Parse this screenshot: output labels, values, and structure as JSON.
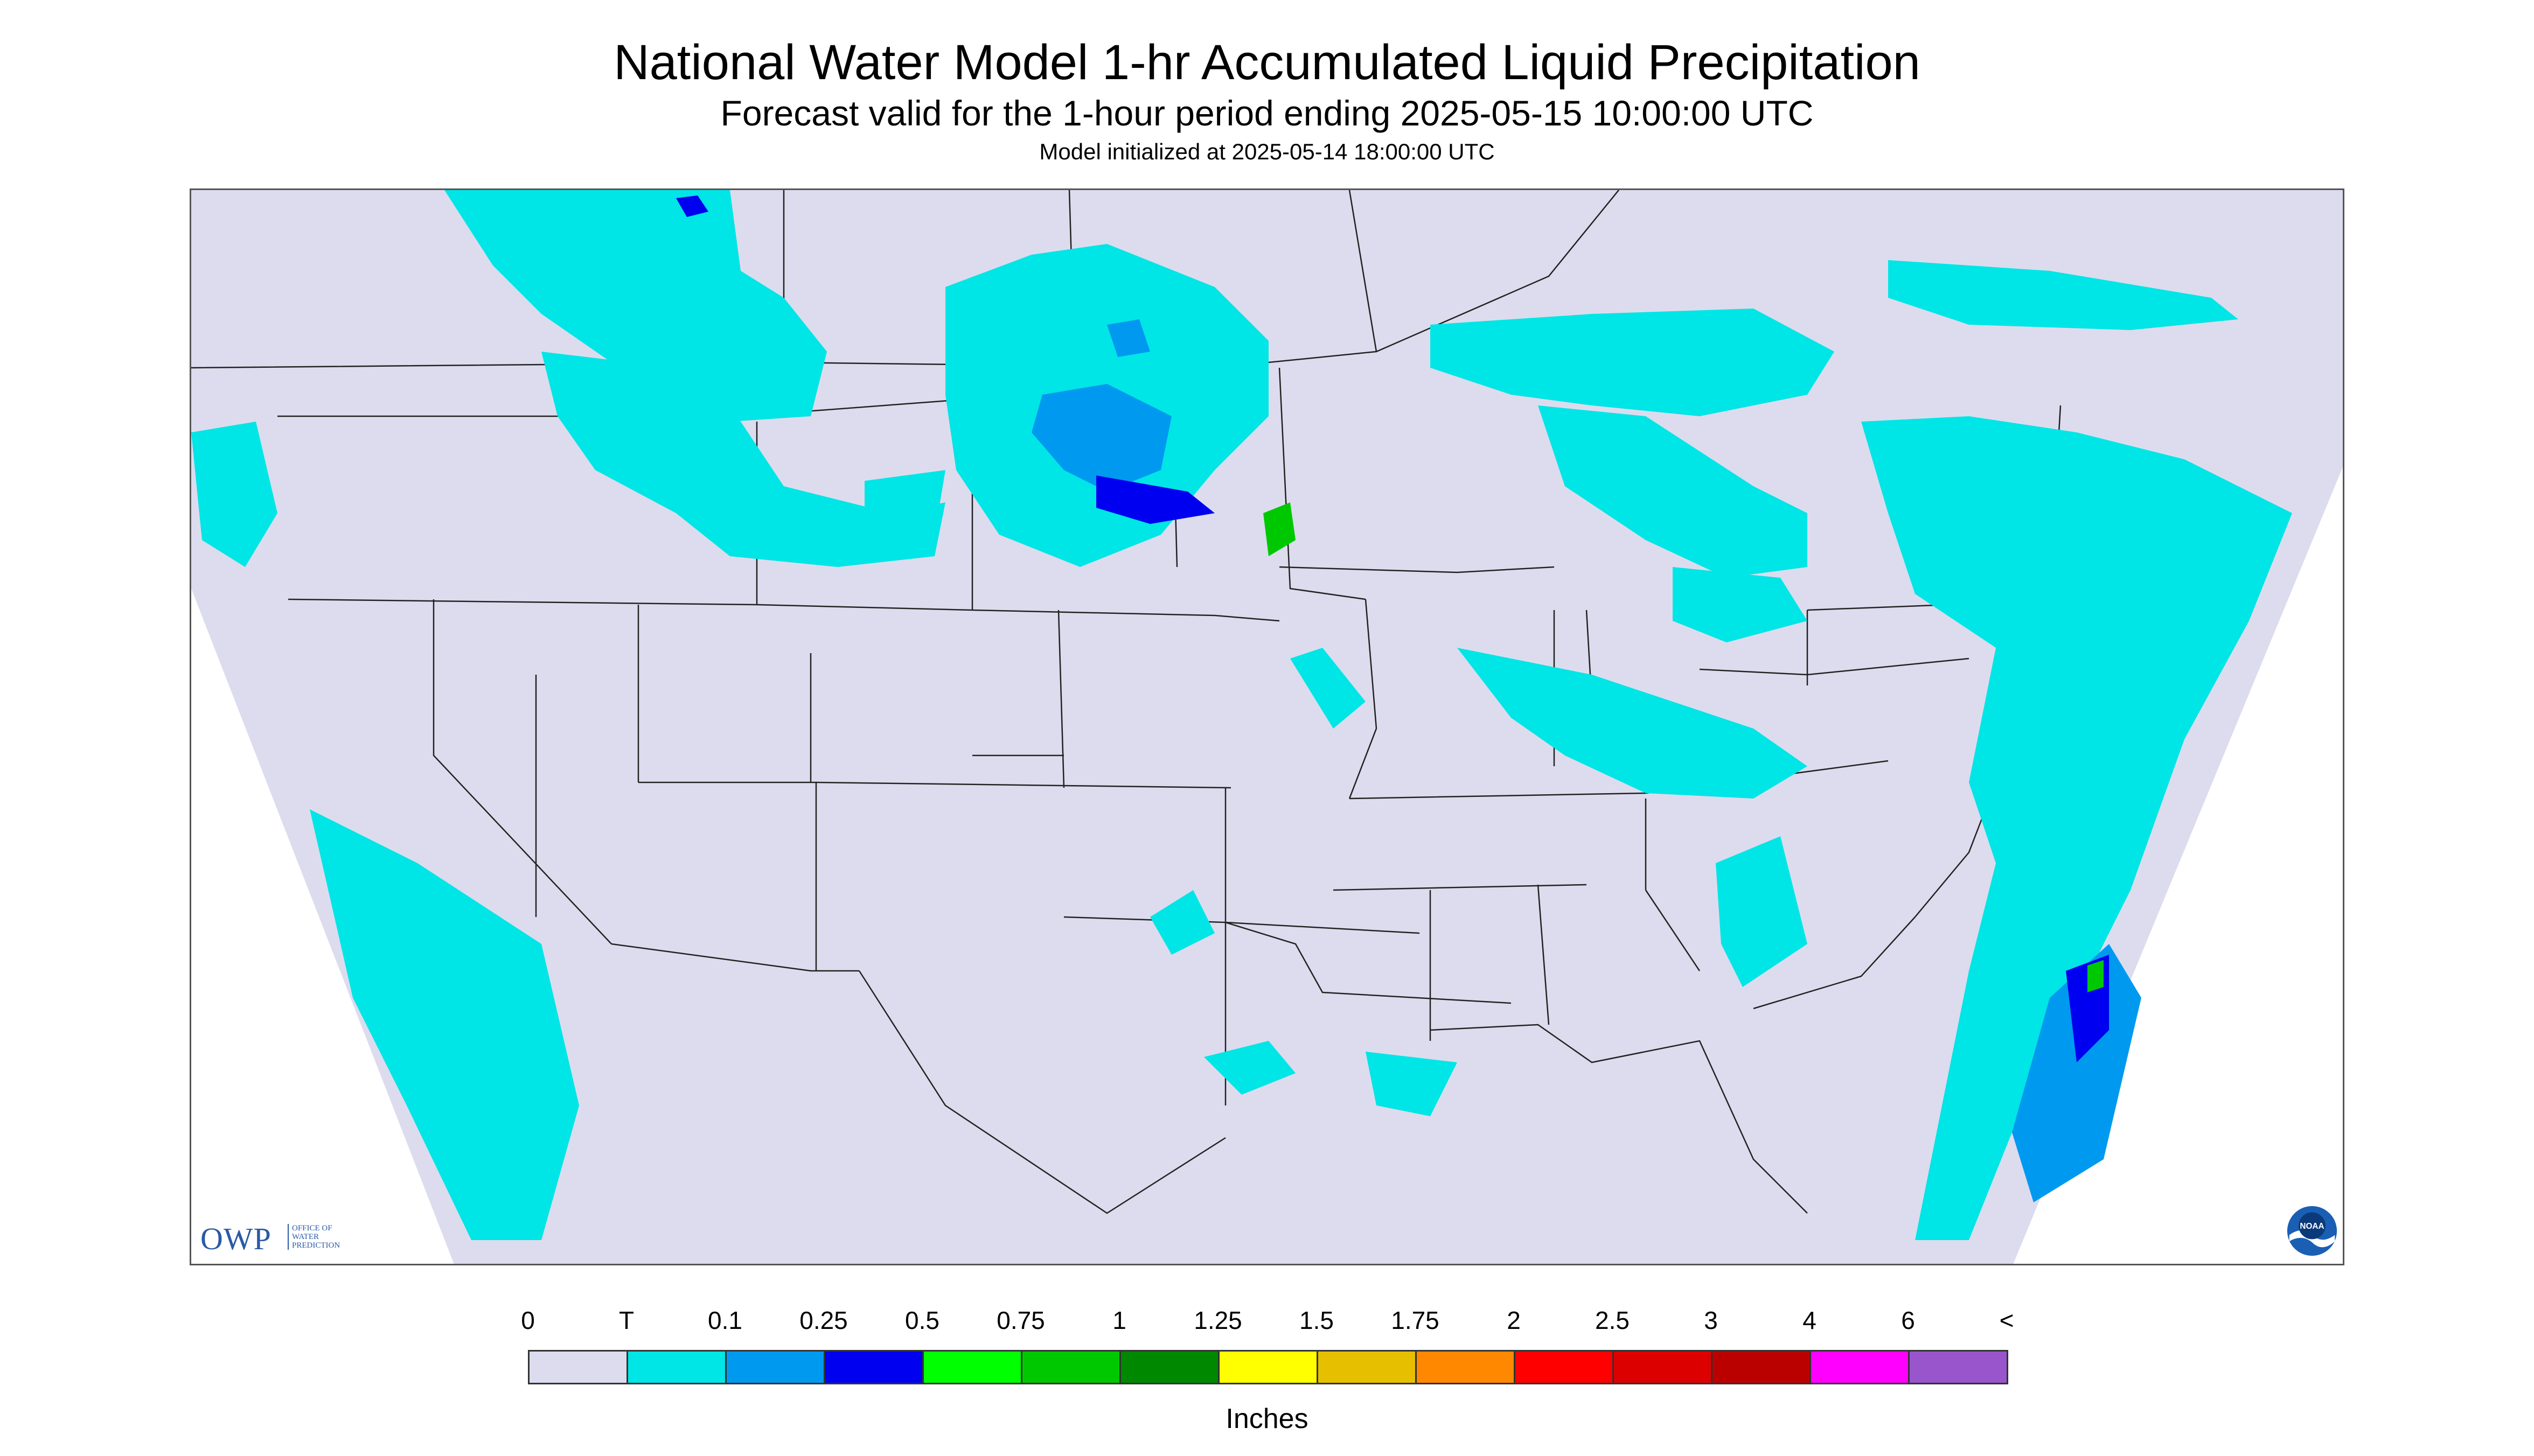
{
  "header": {
    "title": "National Water Model 1-hr Accumulated Liquid Precipitation",
    "subtitle": "Forecast valid for the 1-hour period ending 2025-05-15 10:00:00 UTC",
    "init": "Model initialized at 2025-05-14 18:00:00 UTC"
  },
  "colors": {
    "background": "#dcdcee",
    "no_data": "#ffffff",
    "boundary": "#222222",
    "trace": "#00e5e5"
  },
  "logos": {
    "owp_text": "OWP",
    "owp_sub_line1": "OFFICE OF",
    "owp_sub_line2": "WATER",
    "owp_sub_line3": "PREDICTION",
    "noaa_text": "NOAA"
  },
  "legend": {
    "labels": [
      "0",
      "T",
      "0.1",
      "0.25",
      "0.5",
      "0.75",
      "1",
      "1.25",
      "1.5",
      "1.75",
      "2",
      "2.5",
      "3",
      "4",
      "6",
      "<"
    ],
    "swatches": [
      "#dcdcee",
      "#00e5e5",
      "#0099f0",
      "#0000f0",
      "#00ff00",
      "#00c800",
      "#008800",
      "#ffff00",
      "#e6c000",
      "#ff8800",
      "#ff0000",
      "#dd0000",
      "#bb0000",
      "#ff00ff",
      "#9955cc"
    ],
    "units": "Inches"
  }
}
